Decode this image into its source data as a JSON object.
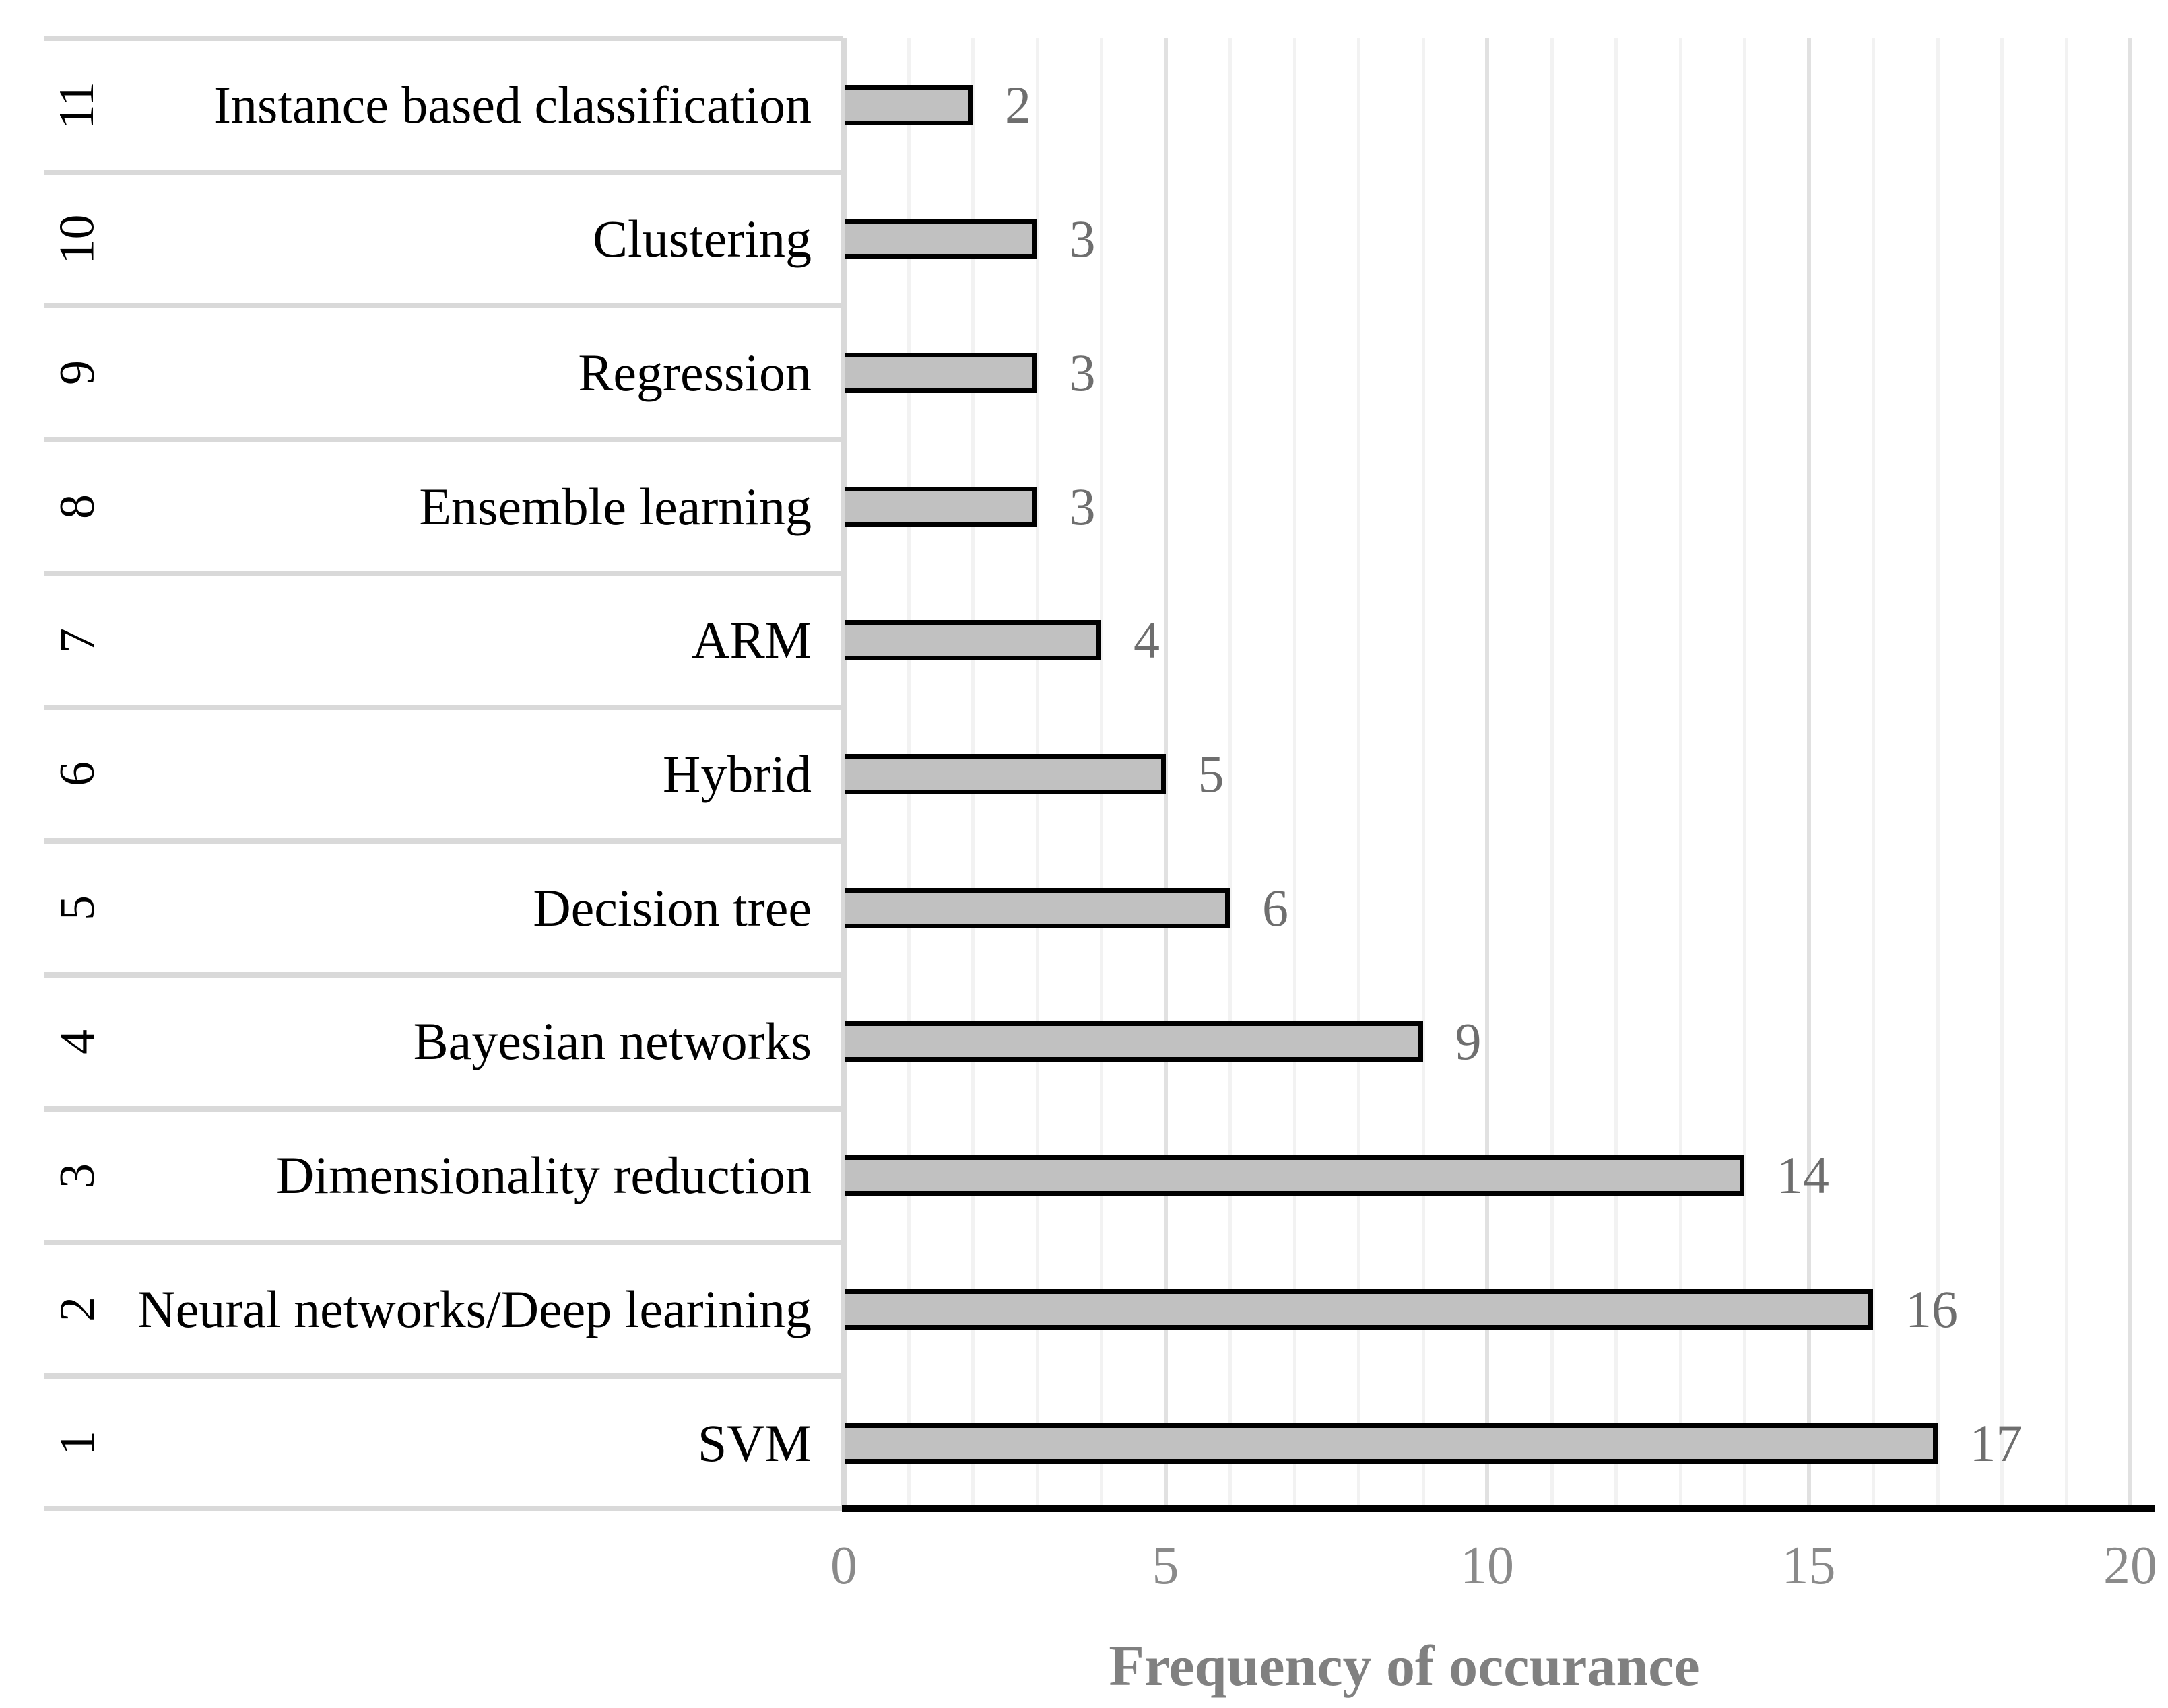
{
  "chart_data": {
    "type": "bar",
    "orientation": "horizontal",
    "xlabel": "Frequency of occurance",
    "xlim": [
      0,
      20
    ],
    "xticks": [
      0,
      5,
      10,
      15,
      20
    ],
    "grid": "vertical minor every 1 unit, darker major every 5 units",
    "legend": "none",
    "rows": [
      {
        "rank": "11",
        "label": "Instance based classification",
        "value": 2
      },
      {
        "rank": "10",
        "label": "Clustering",
        "value": 3
      },
      {
        "rank": "9",
        "label": "Regression",
        "value": 3
      },
      {
        "rank": "8",
        "label": "Ensemble learning",
        "value": 3
      },
      {
        "rank": "7",
        "label": "ARM",
        "value": 4
      },
      {
        "rank": "6",
        "label": "Hybrid",
        "value": 5
      },
      {
        "rank": "5",
        "label": "Decision tree",
        "value": 6
      },
      {
        "rank": "4",
        "label": "Bayesian networks",
        "value": 9
      },
      {
        "rank": "3",
        "label": "Dimensionality reduction",
        "value": 14
      },
      {
        "rank": "2",
        "label": "Neural networks/Deep learining",
        "value": 16
      },
      {
        "rank": "1",
        "label": "SVM",
        "value": 17
      }
    ]
  },
  "colors": {
    "background": "#ffffff",
    "bar_fill": "#c1c1c1",
    "bar_border": "#000000",
    "axis_line": "#000000",
    "separator": "#d9d9d9",
    "gridline_minor": "#f2f2f2",
    "gridline_major": "#e1e1e1",
    "category_text": "#000000",
    "value_label": "#6e6e6e",
    "tick_label": "#8a8a8a",
    "axis_title": "#808080"
  }
}
